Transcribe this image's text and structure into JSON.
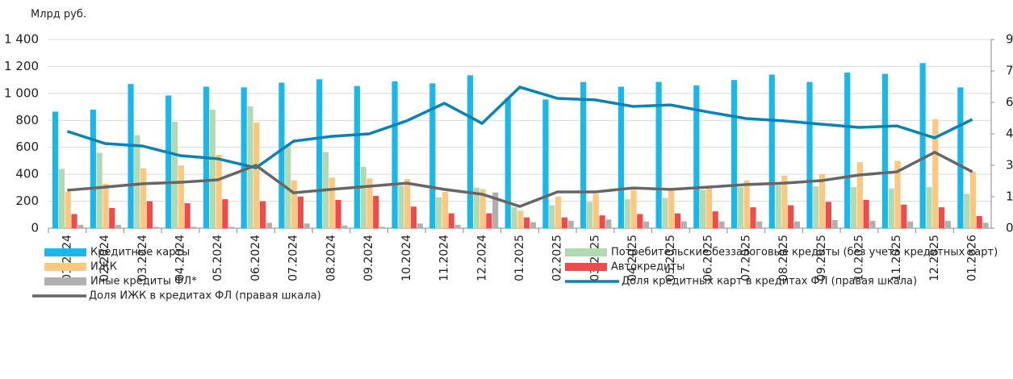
{
  "chart_data": {
    "type": "bar",
    "ylabel": "Млрд руб.",
    "categories": [
      "01.2024",
      "02.2024",
      "03.2024",
      "04.2024",
      "05.2024",
      "06.2024",
      "07.2024",
      "08.2024",
      "09.2024",
      "10.2024",
      "11.2024",
      "12.2024",
      "01.2025",
      "02.2025",
      "03.2025",
      "04.2025",
      "05.2025",
      "06.2025",
      "07.2025",
      "08.2025",
      "09.2025",
      "10.2025",
      "11.2025",
      "12.2025",
      "01.2026"
    ],
    "ylim": [
      0,
      1400
    ],
    "yticks": [
      0,
      200,
      400,
      600,
      800,
      {
        "value": 1000,
        "label": "1 000"
      },
      {
        "value": 1200,
        "label": "1 200"
      },
      {
        "value": 1400,
        "label": "1 400"
      }
    ],
    "y2lim": [
      0,
      90
    ],
    "y2ticks": [
      0,
      15,
      30,
      45,
      60,
      75,
      90
    ],
    "grid": true,
    "series": [
      {
        "name": "Кредитные карты",
        "type": "bar",
        "color": "#1ab7ea",
        "values": [
          865,
          880,
          1070,
          985,
          1050,
          1045,
          1080,
          1105,
          1055,
          1090,
          1075,
          1135,
          965,
          955,
          1085,
          1050,
          1085,
          1060,
          1100,
          1140,
          1085,
          1155,
          1145,
          1225,
          1045
        ]
      },
      {
        "name": "Потребительские беззалоговые кредиты (без учета кредитных карт)",
        "type": "bar",
        "color": "#b3d9b0",
        "values": [
          440,
          560,
          690,
          790,
          880,
          905,
          620,
          565,
          455,
          315,
          230,
          300,
          155,
          170,
          195,
          215,
          225,
          285,
          305,
          320,
          310,
          305,
          295,
          305,
          255
        ]
      },
      {
        "name": "ИЖК",
        "type": "bar",
        "color": "#fcc77f",
        "values": [
          270,
          330,
          445,
          465,
          545,
          785,
          355,
          375,
          370,
          365,
          270,
          290,
          130,
          235,
          255,
          285,
          285,
          305,
          355,
          390,
          400,
          490,
          500,
          810,
          420
        ]
      },
      {
        "name": "Автокредиты",
        "type": "bar",
        "color": "#ef4b4b",
        "values": [
          105,
          150,
          200,
          185,
          215,
          200,
          235,
          210,
          240,
          160,
          110,
          110,
          80,
          80,
          95,
          105,
          110,
          125,
          155,
          170,
          195,
          210,
          175,
          155,
          90
        ]
      },
      {
        "name": "Иные кредиты ФЛ*",
        "type": "bar",
        "color": "#b0b0b0",
        "values": [
          25,
          25,
          10,
          10,
          10,
          40,
          35,
          20,
          10,
          35,
          25,
          265,
          45,
          55,
          65,
          50,
          50,
          50,
          50,
          50,
          60,
          55,
          50,
          55,
          40
        ]
      },
      {
        "name": "Доля кредитных карт в кредитах ФЛ (правая шкала)",
        "type": "line",
        "axis": "y2",
        "color": "#0a82b4",
        "values": [
          46.2,
          40.4,
          39.2,
          34.6,
          33.1,
          28.8,
          41.5,
          43.8,
          45.0,
          51.2,
          59.6,
          50.0,
          67.3,
          61.9,
          61.2,
          58.1,
          58.8,
          55.4,
          52.3,
          51.2,
          49.6,
          48.1,
          48.8,
          43.1,
          51.9
        ]
      },
      {
        "name": "Доля ИЖК в кредитах ФЛ (правая шкала)",
        "type": "line",
        "axis": "y2",
        "color": "#666666",
        "values": [
          18.1,
          19.6,
          21.2,
          21.9,
          23.1,
          30.0,
          16.9,
          18.5,
          20.0,
          21.5,
          18.5,
          16.2,
          10.4,
          17.3,
          17.3,
          19.2,
          18.5,
          19.6,
          20.8,
          21.5,
          22.7,
          25.4,
          26.9,
          36.2,
          26.9
        ]
      }
    ]
  }
}
